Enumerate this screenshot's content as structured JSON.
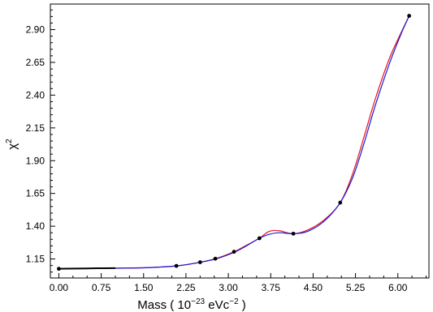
{
  "chart_data": {
    "type": "line",
    "xlabel_main": "Mass ( 10",
    "xlabel_exp": "−23",
    "xlabel_unit": " eVc",
    "xlabel_unit_exp": "−2",
    "xlabel_close": " )",
    "ylabel_main": "χ",
    "ylabel_exp": "2",
    "xlim": [
      -0.15,
      6.55
    ],
    "ylim": [
      1.005,
      3.095
    ],
    "x_ticks": [
      "0.00",
      "0.75",
      "1.50",
      "2.25",
      "3.00",
      "3.75",
      "4.50",
      "5.25",
      "6.00"
    ],
    "y_ticks": [
      "1.15",
      "1.40",
      "1.65",
      "1.90",
      "2.15",
      "2.40",
      "2.65",
      "2.90"
    ],
    "grid": false,
    "legend": "none",
    "colors": {
      "red": "#e8141c",
      "blue": "#1a1adc",
      "black": "#000000"
    },
    "points": {
      "x": [
        0.0,
        2.08,
        2.5,
        2.77,
        3.1,
        3.55,
        4.15,
        4.98,
        6.2
      ],
      "y": [
        1.075,
        1.097,
        1.125,
        1.152,
        1.205,
        1.308,
        1.343,
        1.58,
        3.005
      ]
    },
    "series": [
      {
        "color": "red",
        "x": [
          0.0,
          0.5,
          1.0,
          1.5,
          1.8,
          2.08,
          2.3,
          2.5,
          2.77,
          3.1,
          3.3,
          3.55,
          3.72,
          3.9,
          4.15,
          4.4,
          4.7,
          4.98,
          5.2,
          5.4,
          5.6,
          5.85,
          6.05,
          6.2
        ],
        "y": [
          1.075,
          1.078,
          1.079,
          1.082,
          1.088,
          1.097,
          1.11,
          1.125,
          1.152,
          1.205,
          1.25,
          1.308,
          1.36,
          1.365,
          1.343,
          1.37,
          1.45,
          1.58,
          1.8,
          2.08,
          2.37,
          2.68,
          2.87,
          3.005
        ]
      },
      {
        "color": "blue",
        "x": [
          0.0,
          0.5,
          1.0,
          1.5,
          1.8,
          2.08,
          2.3,
          2.5,
          2.77,
          3.1,
          3.3,
          3.55,
          3.72,
          3.9,
          4.15,
          4.4,
          4.7,
          4.98,
          5.2,
          5.4,
          5.6,
          5.85,
          6.05,
          6.2
        ],
        "y": [
          1.075,
          1.077,
          1.08,
          1.083,
          1.089,
          1.097,
          1.109,
          1.125,
          1.149,
          1.2,
          1.245,
          1.308,
          1.338,
          1.35,
          1.343,
          1.36,
          1.44,
          1.58,
          1.77,
          2.03,
          2.32,
          2.64,
          2.86,
          3.005
        ]
      }
    ]
  }
}
